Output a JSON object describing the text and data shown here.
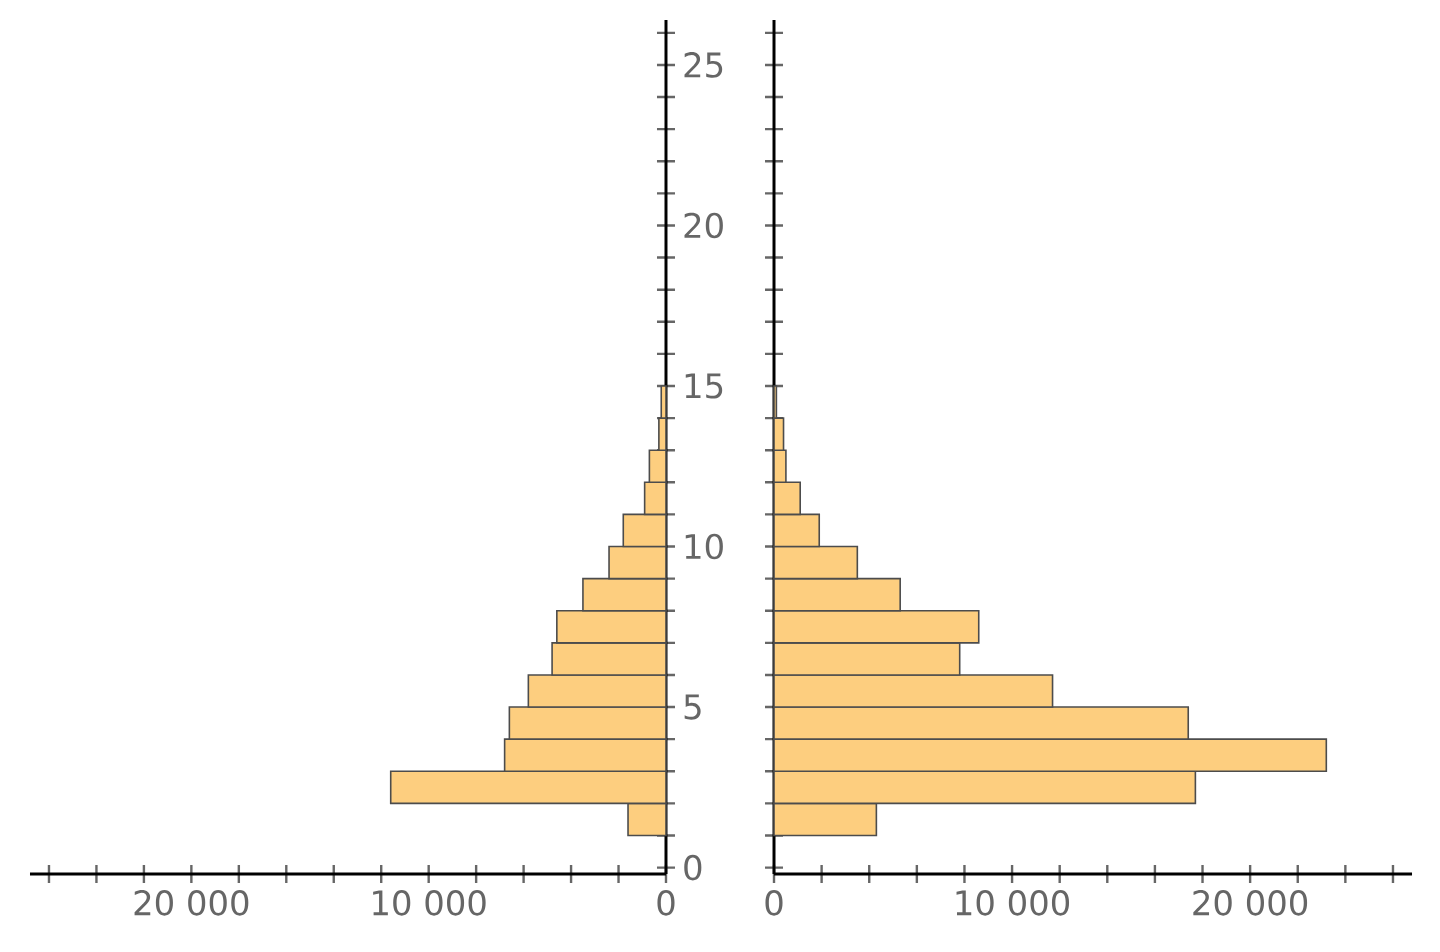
{
  "chart_data": [
    {
      "type": "histogram",
      "orientation": "horizontal",
      "color": "#fdce7f",
      "bins": [
        1,
        2,
        3,
        4,
        5,
        6,
        7,
        8,
        9,
        10,
        11,
        12,
        13,
        14,
        15
      ],
      "values": [
        1600,
        11600,
        6800,
        6600,
        5800,
        4800,
        4600,
        3500,
        2400,
        1800,
        900,
        700,
        300,
        200
      ],
      "xlim": [
        26800,
        0
      ],
      "ylim": [
        -0.2,
        26.4
      ],
      "xticks": [
        {
          "value": 0,
          "label": "0"
        },
        {
          "value": 2000,
          "label": null
        },
        {
          "value": 4000,
          "label": null
        },
        {
          "value": 6000,
          "label": null
        },
        {
          "value": 8000,
          "label": null
        },
        {
          "value": 10000,
          "label": "10 000"
        },
        {
          "value": 12000,
          "label": null
        },
        {
          "value": 14000,
          "label": null
        },
        {
          "value": 16000,
          "label": null
        },
        {
          "value": 18000,
          "label": null
        },
        {
          "value": 20000,
          "label": "20 000"
        },
        {
          "value": 22000,
          "label": null
        },
        {
          "value": 24000,
          "label": null
        },
        {
          "value": 26000,
          "label": null
        }
      ],
      "yticks": [
        0,
        {
          "value": 1,
          "label": null
        },
        {
          "value": 2,
          "label": null
        },
        {
          "value": 3,
          "label": null
        },
        {
          "value": 4,
          "label": null
        },
        5,
        {
          "value": 6,
          "label": null
        },
        {
          "value": 7,
          "label": null
        },
        {
          "value": 8,
          "label": null
        },
        {
          "value": 9,
          "label": null
        },
        10,
        {
          "value": 11,
          "label": null
        },
        {
          "value": 12,
          "label": null
        },
        {
          "value": 13,
          "label": null
        },
        {
          "value": 14,
          "label": null
        },
        15,
        {
          "value": 16,
          "label": null
        },
        {
          "value": 17,
          "label": null
        },
        {
          "value": 18,
          "label": null
        },
        {
          "value": 19,
          "label": null
        },
        20,
        {
          "value": 21,
          "label": null
        },
        {
          "value": 22,
          "label": null
        },
        {
          "value": 23,
          "label": null
        },
        {
          "value": 24,
          "label": null
        },
        25,
        {
          "value": 26,
          "label": null
        }
      ],
      "grid": false
    },
    {
      "type": "histogram",
      "orientation": "horizontal",
      "color": "#fdce7f",
      "tick_labels": "x",
      "bins": [
        1,
        2,
        3,
        4,
        5,
        6,
        7,
        8,
        9,
        10,
        11,
        12,
        13,
        14,
        15
      ],
      "values": [
        4300,
        17700,
        23200,
        17400,
        11700,
        7800,
        8600,
        5300,
        3500,
        1900,
        1100,
        500,
        400,
        100
      ],
      "xlim": [
        0,
        26800
      ],
      "ylim": [
        -0.2,
        26.4
      ],
      "xticks": [
        {
          "value": 0,
          "label": "0"
        },
        {
          "value": 2000,
          "label": null
        },
        {
          "value": 4000,
          "label": null
        },
        {
          "value": 6000,
          "label": null
        },
        {
          "value": 8000,
          "label": null
        },
        {
          "value": 10000,
          "label": "10 000"
        },
        {
          "value": 12000,
          "label": null
        },
        {
          "value": 14000,
          "label": null
        },
        {
          "value": 16000,
          "label": null
        },
        {
          "value": 18000,
          "label": null
        },
        {
          "value": 20000,
          "label": "20 000"
        },
        {
          "value": 22000,
          "label": null
        },
        {
          "value": 24000,
          "label": null
        },
        {
          "value": 26000,
          "label": null
        }
      ],
      "yticks": [
        0,
        {
          "value": 1,
          "label": null
        },
        {
          "value": 2,
          "label": null
        },
        {
          "value": 3,
          "label": null
        },
        {
          "value": 4,
          "label": null
        },
        5,
        {
          "value": 6,
          "label": null
        },
        {
          "value": 7,
          "label": null
        },
        {
          "value": 8,
          "label": null
        },
        {
          "value": 9,
          "label": null
        },
        10,
        {
          "value": 11,
          "label": null
        },
        {
          "value": 12,
          "label": null
        },
        {
          "value": 13,
          "label": null
        },
        {
          "value": 14,
          "label": null
        },
        15,
        {
          "value": 16,
          "label": null
        },
        {
          "value": 17,
          "label": null
        },
        {
          "value": 18,
          "label": null
        },
        {
          "value": 19,
          "label": null
        },
        20,
        {
          "value": 21,
          "label": null
        },
        {
          "value": 22,
          "label": null
        },
        {
          "value": 23,
          "label": null
        },
        {
          "value": 24,
          "label": null
        },
        25,
        {
          "value": 26,
          "label": null
        }
      ],
      "grid": false
    }
  ]
}
